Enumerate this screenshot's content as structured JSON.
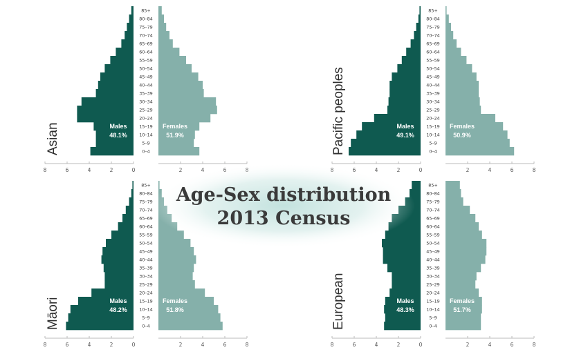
{
  "title_line1": "Age-Sex distribution",
  "title_line2": "2013 Census",
  "colors": {
    "male": "#0f5a50",
    "female": "#85b0aa",
    "glow": "#cfe6e2"
  },
  "chart_data": [
    {
      "type": "bar",
      "group": "Asian",
      "categories": [
        "85+",
        "80–84",
        "75–79",
        "70–74",
        "65–69",
        "60–64",
        "55–59",
        "50–54",
        "45–49",
        "40–44",
        "35–39",
        "30–34",
        "25–29",
        "20–24",
        "15–19",
        "10–14",
        "5–9",
        "0–4"
      ],
      "series": [
        {
          "name": "Males",
          "share": "48.1%",
          "values": [
            0.2,
            0.4,
            0.6,
            0.8,
            1.1,
            1.6,
            2.1,
            2.6,
            3.0,
            3.2,
            3.4,
            4.7,
            5.1,
            5.1,
            3.6,
            3.4,
            3.4,
            3.9
          ]
        },
        {
          "name": "Females",
          "share": "51.9%",
          "values": [
            0.3,
            0.5,
            0.7,
            1.0,
            1.3,
            1.9,
            2.5,
            3.0,
            3.6,
            4.0,
            4.1,
            5.2,
            5.3,
            4.7,
            3.7,
            3.3,
            3.2,
            3.7
          ]
        }
      ],
      "xlim": [
        8,
        0,
        8
      ],
      "xticks": [
        "8",
        "6",
        "4",
        "2",
        "0",
        "2",
        "4",
        "6",
        "8"
      ]
    },
    {
      "type": "bar",
      "group": "Pacific peoples",
      "categories": [
        "85+",
        "80–84",
        "75–79",
        "70–74",
        "65–69",
        "60–64",
        "55–59",
        "50–54",
        "45–49",
        "40–44",
        "35–39",
        "30–34",
        "25–29",
        "20–24",
        "15–19",
        "10–14",
        "5–9",
        "0–4"
      ],
      "series": [
        {
          "name": "Males",
          "share": "49.1%",
          "values": [
            0.1,
            0.2,
            0.4,
            0.6,
            0.9,
            1.3,
            1.7,
            2.1,
            2.6,
            2.8,
            2.8,
            2.9,
            3.0,
            4.2,
            5.3,
            5.8,
            6.3,
            6.5
          ]
        },
        {
          "name": "Females",
          "share": "50.9%",
          "values": [
            0.1,
            0.3,
            0.5,
            0.7,
            1.0,
            1.4,
            1.9,
            2.4,
            2.8,
            3.0,
            3.0,
            3.1,
            3.2,
            4.5,
            5.2,
            5.6,
            5.8,
            6.2
          ]
        }
      ],
      "xlim": [
        8,
        0,
        8
      ],
      "xticks": [
        "8",
        "6",
        "4",
        "2",
        "0",
        "2",
        "4",
        "6",
        "8"
      ]
    },
    {
      "type": "bar",
      "group": "Māori",
      "categories": [
        "85+",
        "80–84",
        "75–79",
        "70–74",
        "65–69",
        "60–64",
        "55–59",
        "50–54",
        "45–49",
        "40–44",
        "35–39",
        "30–34",
        "25–29",
        "20–24",
        "15–19",
        "10–14",
        "5–9",
        "0–4"
      ],
      "series": [
        {
          "name": "Males",
          "share": "48.2%",
          "values": [
            0.1,
            0.2,
            0.4,
            0.7,
            1.0,
            1.4,
            2.0,
            2.5,
            2.8,
            2.9,
            2.7,
            2.6,
            2.6,
            3.8,
            5.0,
            5.7,
            5.9,
            6.1
          ]
        },
        {
          "name": "Females",
          "share": "51.8%",
          "values": [
            0.1,
            0.3,
            0.5,
            0.8,
            1.2,
            1.7,
            2.3,
            2.9,
            3.2,
            3.4,
            3.2,
            3.1,
            3.3,
            4.2,
            5.0,
            5.4,
            5.6,
            5.8
          ]
        }
      ],
      "xlim": [
        8,
        0,
        8
      ],
      "xticks": [
        "8",
        "6",
        "4",
        "2",
        "0",
        "2",
        "4",
        "6",
        "8"
      ]
    },
    {
      "type": "bar",
      "group": "European",
      "categories": [
        "85+",
        "80–84",
        "75–79",
        "70–74",
        "65–69",
        "60–64",
        "55–59",
        "50–54",
        "45–49",
        "40–44",
        "35–39",
        "30–34",
        "25–29",
        "20–24",
        "15–19",
        "10–14",
        "5–9",
        "0–4"
      ],
      "series": [
        {
          "name": "Males",
          "share": "48.3%",
          "values": [
            0.8,
            1.0,
            1.4,
            2.0,
            2.6,
            2.9,
            3.2,
            3.5,
            3.4,
            3.4,
            3.0,
            2.6,
            2.6,
            2.8,
            3.2,
            3.3,
            3.2,
            3.3
          ]
        },
        {
          "name": "Females",
          "share": "51.7%",
          "values": [
            1.3,
            1.4,
            1.6,
            2.2,
            2.7,
            3.0,
            3.3,
            3.7,
            3.7,
            3.6,
            3.2,
            2.8,
            2.7,
            3.0,
            3.3,
            3.3,
            3.2,
            3.2
          ]
        }
      ],
      "xlim": [
        8,
        0,
        8
      ],
      "xticks": [
        "8",
        "6",
        "4",
        "2",
        "0",
        "2",
        "4",
        "6",
        "8"
      ]
    }
  ]
}
